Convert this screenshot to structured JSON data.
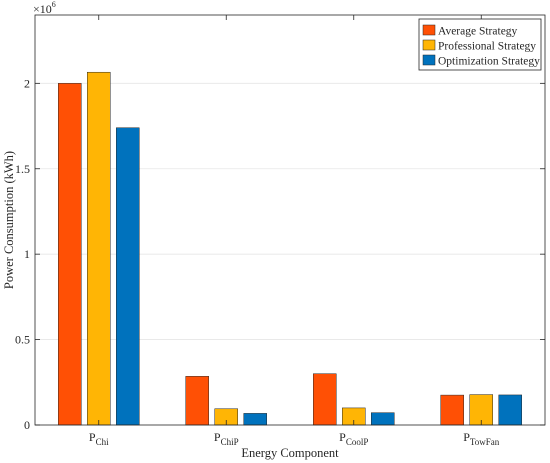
{
  "chart_data": {
    "type": "bar",
    "title": "",
    "xlabel": "Energy Component",
    "ylabel": "Power Consumption (kWh)",
    "y_exponent_label": "×10",
    "y_exponent_power": "6",
    "ylim": [
      0,
      2.4
    ],
    "yticks": [
      0,
      0.5,
      1,
      1.5,
      2
    ],
    "ytick_labels": [
      "0",
      "0.5",
      "1",
      "1.5",
      "2"
    ],
    "categories": [
      {
        "base": "P",
        "sub": "Chi"
      },
      {
        "base": "P",
        "sub": "ChiP"
      },
      {
        "base": "P",
        "sub": "CoolP"
      },
      {
        "base": "P",
        "sub": "TowFan"
      }
    ],
    "series": [
      {
        "name": "Average Strategy",
        "color": "#FF5005",
        "values": [
          2.0,
          0.285,
          0.3,
          0.175
        ]
      },
      {
        "name": "Professional Strategy",
        "color": "#FFB505",
        "values": [
          2.065,
          0.095,
          0.1,
          0.178
        ]
      },
      {
        "name": "Optimization Strategy",
        "color": "#0072BD",
        "values": [
          1.74,
          0.068,
          0.072,
          0.176
        ]
      }
    ],
    "legend_position": "top-right",
    "grid": "y-major"
  }
}
